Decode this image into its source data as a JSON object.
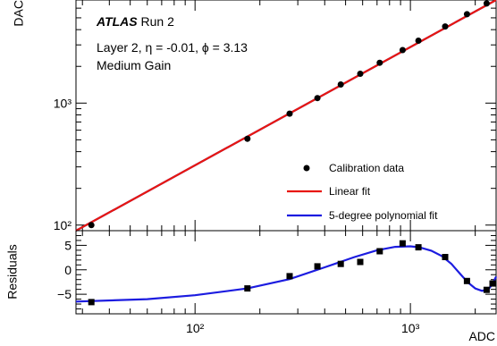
{
  "chart_data": {
    "type": "scatter",
    "x_scale": "log",
    "annotation": {
      "experiment": "ATLAS",
      "run": " Run 2",
      "layer_line": "Layer 2, η = -0.01, ϕ = 3.13",
      "gain_line": "Medium Gain"
    },
    "top_panel": {
      "ylabel": "DAC",
      "y_scale": "log",
      "xlim": [
        28,
        2500
      ],
      "ylim": [
        90,
        7000
      ],
      "y_tick_labels": [
        "10²",
        "10³"
      ],
      "y_tick_values": [
        100,
        1000
      ],
      "legend": {
        "placement": "bottom-right",
        "entries": [
          "Calibration data",
          "Linear fit",
          "5-degree polynomial fit"
        ]
      },
      "series": [
        {
          "name": "Calibration data",
          "marker": "circle",
          "color": "#000000",
          "x": [
            33,
            175,
            275,
            370,
            475,
            585,
            720,
            920,
            1090,
            1450,
            1830,
            2260
          ],
          "y": [
            100,
            510,
            820,
            1100,
            1420,
            1740,
            2140,
            2720,
            3250,
            4250,
            5350,
            6550
          ]
        },
        {
          "name": "Linear fit",
          "color": "#e8170f",
          "x": [
            28,
            2500
          ],
          "y": [
            84.6,
            7250
          ]
        },
        {
          "name": "5-degree polynomial fit",
          "color": "#1c1ce0",
          "x": [
            28,
            2500
          ],
          "y": [
            84.6,
            7250
          ]
        }
      ]
    },
    "bottom_panel": {
      "ylabel": "Residuals",
      "xlabel": "ADC",
      "ylim": [
        -9,
        8
      ],
      "y_tick_labels": [
        "5",
        "0",
        "−5"
      ],
      "y_tick_values": [
        5,
        0,
        -5
      ],
      "x_tick_labels": [
        "10²",
        "10³"
      ],
      "x_tick_values": [
        100,
        1000
      ],
      "series": [
        {
          "name": "Residuals",
          "marker": "square",
          "color": "#000000",
          "x": [
            33,
            175,
            275,
            370,
            475,
            585,
            720,
            920,
            1090,
            1450,
            1830,
            2260,
            2480
          ],
          "y": [
            -6.6,
            -3.8,
            -1.3,
            0.7,
            1.2,
            1.6,
            3.8,
            5.4,
            4.6,
            2.6,
            -2.3,
            -4.1,
            -2.8
          ]
        },
        {
          "name": "5-degree polynomial fit",
          "color": "#1c1ce0",
          "x": [
            28,
            60,
            100,
            175,
            275,
            400,
            550,
            700,
            850,
            1000,
            1100,
            1250,
            1400,
            1550,
            1700,
            1850,
            2000,
            2150,
            2300,
            2400,
            2500
          ],
          "y": [
            -6.5,
            -6.0,
            -5.2,
            -3.8,
            -1.9,
            0.5,
            2.6,
            4.0,
            4.7,
            4.8,
            4.6,
            3.9,
            2.8,
            1.2,
            -0.8,
            -2.6,
            -3.8,
            -4.3,
            -4.0,
            -3.0,
            -1.4
          ]
        }
      ]
    }
  }
}
